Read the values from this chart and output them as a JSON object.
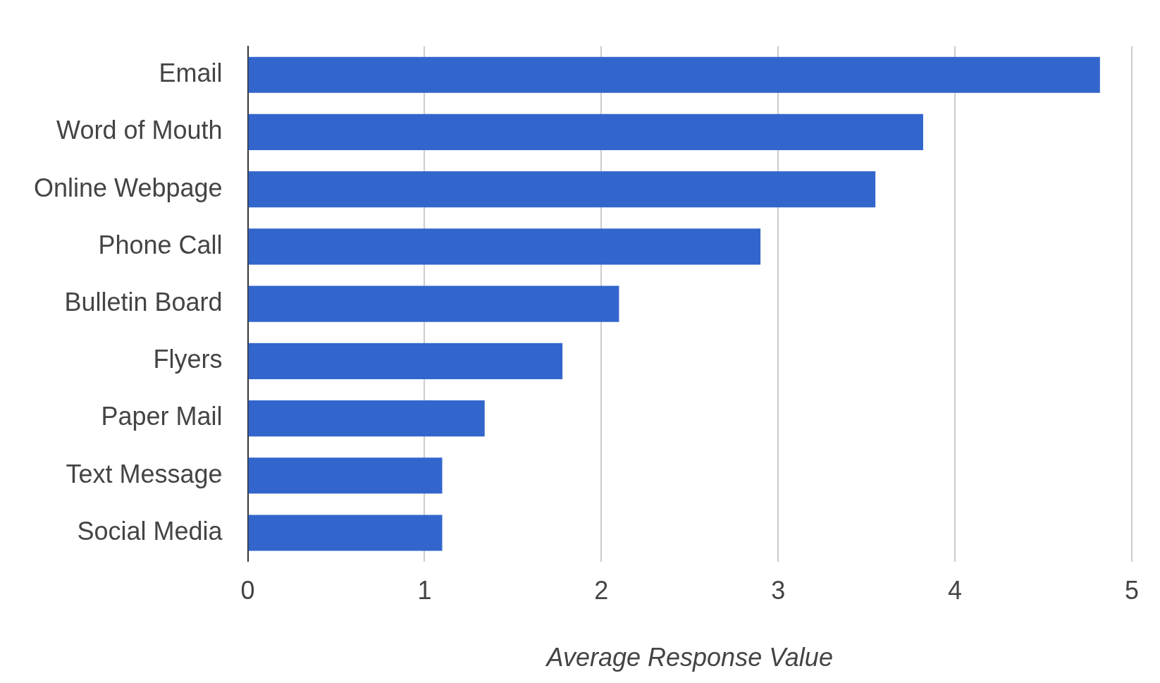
{
  "chart_data": {
    "type": "bar",
    "orientation": "horizontal",
    "xlabel": "Average Response Value",
    "categories": [
      "Email",
      "Word of Mouth",
      "Online Webpage",
      "Phone Call",
      "Bulletin Board",
      "Flyers",
      "Paper Mail",
      "Text Message",
      "Social Media"
    ],
    "values": [
      4.82,
      3.82,
      3.55,
      2.9,
      2.1,
      1.78,
      1.34,
      1.1,
      1.1
    ],
    "color": "#3366cc",
    "xlim": [
      0,
      5
    ],
    "xticks": [
      0,
      1,
      2,
      3,
      4,
      5
    ],
    "grid": "x",
    "legend": false
  }
}
